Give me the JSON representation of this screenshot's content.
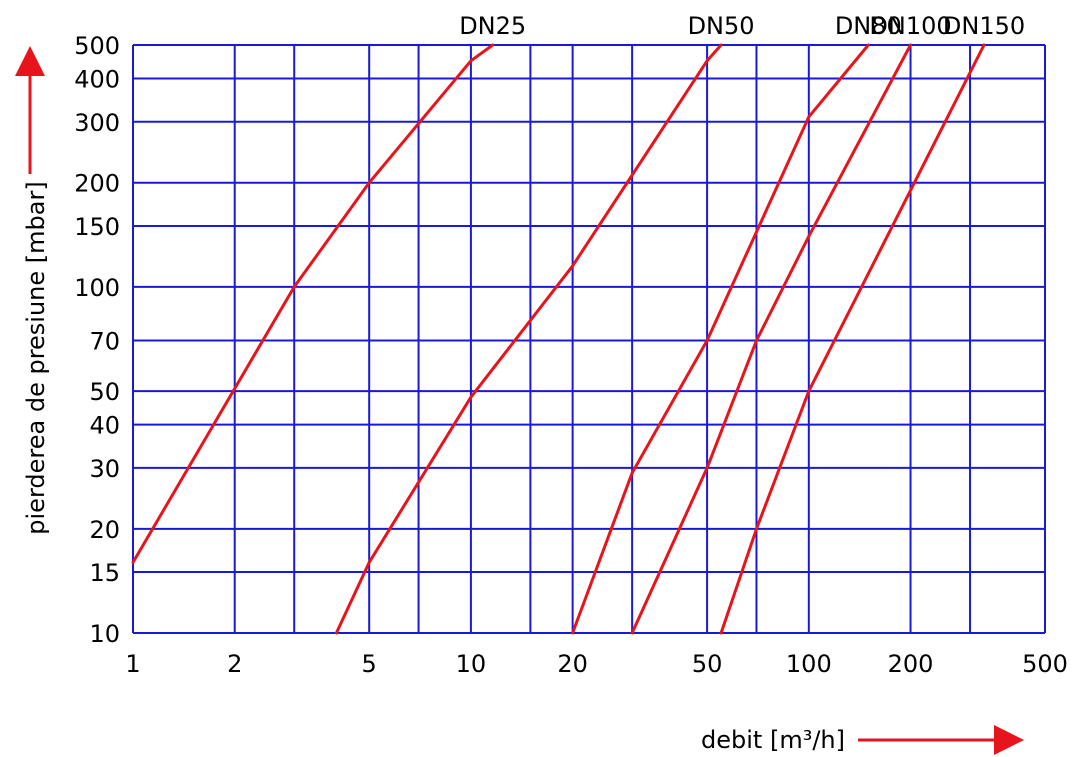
{
  "chart_data": {
    "type": "line",
    "xlabel": "debit [m³/h]",
    "ylabel": "pierderea de presiune [mbar]",
    "x_scale": "log",
    "y_scale": "log",
    "xlim": [
      1,
      500
    ],
    "ylim": [
      10,
      500
    ],
    "grid": true,
    "x_ticks": [
      1,
      2,
      3,
      5,
      7,
      10,
      15,
      20,
      30,
      50,
      70,
      100,
      200,
      300,
      500
    ],
    "x_tick_labels": [
      "1",
      "2",
      "5",
      "10",
      "20",
      "50",
      "100",
      "200",
      "500"
    ],
    "x_tick_label_values": [
      1,
      2,
      5,
      10,
      20,
      50,
      100,
      200,
      500
    ],
    "y_ticks": [
      10,
      15,
      20,
      30,
      40,
      50,
      70,
      100,
      150,
      200,
      300,
      400,
      500
    ],
    "y_tick_labels": [
      "10",
      "15",
      "20",
      "30",
      "40",
      "50",
      "70",
      "100",
      "150",
      "200",
      "300",
      "400",
      "500"
    ],
    "series": [
      {
        "name": "DN25",
        "x": [
          1,
          3,
          5,
          10,
          11.6
        ],
        "y": [
          16,
          100,
          200,
          450,
          500
        ]
      },
      {
        "name": "DN50",
        "x": [
          4,
          5,
          10,
          20,
          50,
          55
        ],
        "y": [
          10,
          16,
          48,
          115,
          450,
          500
        ]
      },
      {
        "name": "DN80",
        "x": [
          20,
          30,
          50,
          100,
          150
        ],
        "y": [
          10,
          29,
          70,
          310,
          500
        ]
      },
      {
        "name": "DN100",
        "x": [
          30,
          50,
          70,
          100,
          200
        ],
        "y": [
          10,
          30,
          70,
          140,
          500
        ]
      },
      {
        "name": "DN150",
        "x": [
          55,
          70,
          100,
          200,
          330
        ],
        "y": [
          10,
          20,
          50,
          190,
          500
        ]
      }
    ],
    "colors": {
      "grid": "#1a1ad6",
      "series": "#e8141c",
      "text": "#000000"
    }
  }
}
